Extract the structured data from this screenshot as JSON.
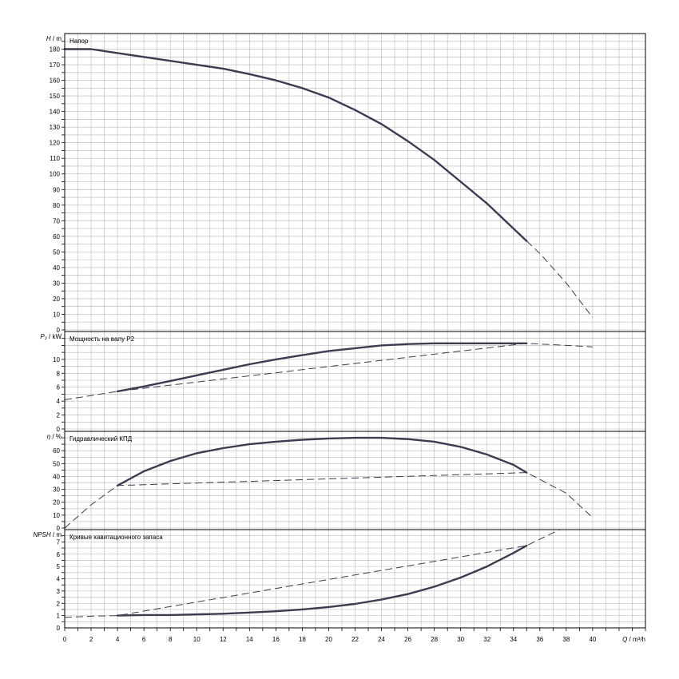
{
  "chart_data": [
    {
      "type": "line",
      "panel": "head",
      "title": "Напор",
      "ylabel_var": "H",
      "ylabel_unit": "/ m",
      "ylim": [
        0,
        190
      ],
      "yticks": [
        0,
        10,
        20,
        30,
        40,
        50,
        60,
        70,
        80,
        90,
        100,
        110,
        120,
        130,
        140,
        150,
        160,
        170,
        180
      ],
      "solid": {
        "x": [
          0,
          2,
          4,
          6,
          8,
          10,
          12,
          14,
          16,
          18,
          20,
          22,
          24,
          26,
          28,
          30,
          32,
          34,
          35
        ],
        "y": [
          180,
          180,
          177.5,
          175,
          172.5,
          170,
          167.5,
          164,
          160,
          155,
          149,
          141,
          132,
          121,
          109,
          95,
          81,
          65,
          57
        ]
      },
      "dashed": {
        "x": [
          35,
          36,
          38,
          40
        ],
        "y": [
          57,
          49,
          30,
          8
        ]
      }
    },
    {
      "type": "line",
      "panel": "power",
      "title": "Мощность на валу P2",
      "ylabel_var": "P₂",
      "ylabel_unit": "/ kW",
      "ylim": [
        0,
        14
      ],
      "yticks": [
        0,
        2,
        4,
        6,
        8,
        10
      ],
      "solid": {
        "x": [
          4,
          6,
          8,
          10,
          12,
          14,
          16,
          18,
          20,
          22,
          24,
          26,
          28,
          30,
          32,
          34,
          35
        ],
        "y": [
          5.4,
          6.1,
          6.9,
          7.7,
          8.5,
          9.3,
          10.0,
          10.6,
          11.2,
          11.6,
          12.0,
          12.2,
          12.3,
          12.3,
          12.3,
          12.3,
          12.3
        ]
      },
      "dashed": {
        "x": [
          0,
          2,
          4,
          35,
          38,
          40
        ],
        "y": [
          4.2,
          4.8,
          5.4,
          12.3,
          12.0,
          11.8
        ]
      }
    },
    {
      "type": "line",
      "panel": "efficiency",
      "title": "Гидравлический КПД",
      "ylabel_var": "η",
      "ylabel_unit": "/ %",
      "ylim": [
        0,
        75
      ],
      "yticks": [
        0,
        10,
        20,
        30,
        40,
        50,
        60
      ],
      "solid": {
        "x": [
          4,
          6,
          8,
          10,
          12,
          14,
          16,
          18,
          20,
          22,
          24,
          26,
          28,
          30,
          32,
          34,
          35
        ],
        "y": [
          33,
          44,
          52,
          58,
          62,
          65,
          67,
          68.5,
          69.5,
          70,
          70,
          69,
          67,
          63,
          57,
          49,
          43
        ]
      },
      "dashed": {
        "x": [
          0,
          2,
          4,
          35,
          38,
          40
        ],
        "y": [
          0,
          18,
          33,
          43,
          27,
          8
        ]
      }
    },
    {
      "type": "line",
      "panel": "npsh",
      "title": "Кривые кавитационного запаса",
      "ylabel_var": "NPSH",
      "ylabel_unit": "/ m",
      "ylim": [
        0,
        8
      ],
      "yticks": [
        0,
        1,
        2,
        3,
        4,
        5,
        6,
        7
      ],
      "solid": {
        "x": [
          4,
          6,
          8,
          10,
          12,
          14,
          16,
          18,
          20,
          22,
          24,
          26,
          28,
          30,
          32,
          34,
          35
        ],
        "y": [
          1.0,
          1.05,
          1.05,
          1.1,
          1.15,
          1.25,
          1.35,
          1.5,
          1.7,
          1.95,
          2.3,
          2.75,
          3.35,
          4.1,
          5.0,
          6.1,
          6.7
        ]
      },
      "dashed": {
        "x": [
          0,
          2,
          4,
          35,
          37.5
        ],
        "y": [
          0.85,
          0.95,
          1.0,
          6.7,
          8.0
        ]
      }
    }
  ],
  "x_axis": {
    "label_var": "Q",
    "label_unit": "/ m³/h",
    "xlim": [
      0,
      44
    ],
    "ticks": [
      0,
      2,
      4,
      6,
      8,
      10,
      12,
      14,
      16,
      18,
      20,
      22,
      24,
      26,
      28,
      30,
      32,
      34,
      36,
      38,
      40
    ]
  },
  "colors": {
    "curve": "#3a3d4f",
    "grid": "#b8b8b8",
    "frame": "#000000"
  }
}
